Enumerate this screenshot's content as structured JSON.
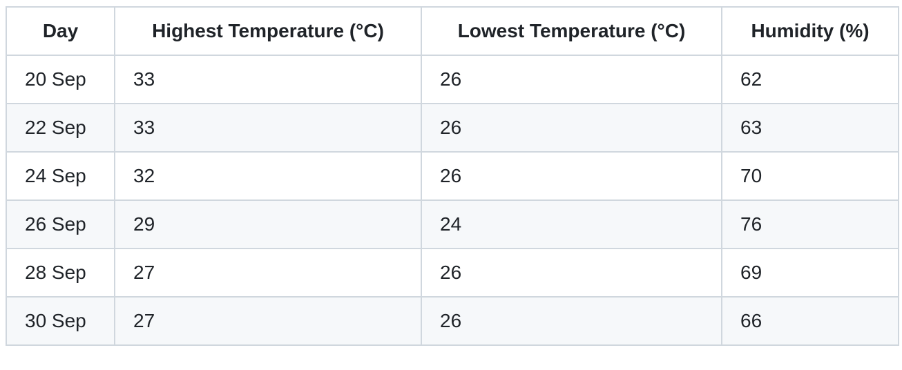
{
  "table": {
    "headers": [
      "Day",
      "Highest Temperature (°C)",
      "Lowest Temperature (°C)",
      "Humidity (%)"
    ],
    "rows": [
      [
        "20 Sep",
        33,
        26,
        62
      ],
      [
        "22 Sep",
        33,
        26,
        63
      ],
      [
        "24 Sep",
        32,
        26,
        70
      ],
      [
        "26 Sep",
        29,
        24,
        76
      ],
      [
        "28 Sep",
        27,
        26,
        69
      ],
      [
        "30 Sep",
        27,
        26,
        66
      ]
    ]
  }
}
